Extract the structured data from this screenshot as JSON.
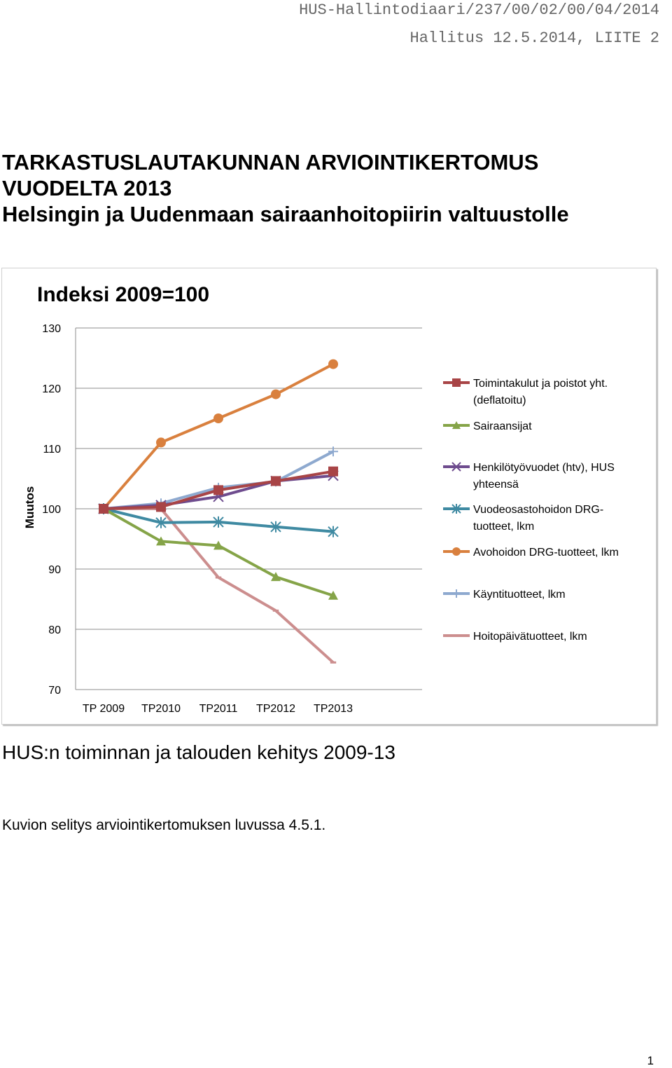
{
  "header": {
    "ref": "HUS-Hallintodiaari/237/00/02/00/04/2014",
    "meeting": "Hallitus 12.5.2014, LIITE 2"
  },
  "document": {
    "title_line1": "TARKASTUSLAUTAKUNNAN ARVIOINTIKERTOMUS",
    "title_line2": "VUODELTA 2013",
    "title_line3": "Helsingin ja Uudenmaan sairaanhoitopiirin valtuustolle",
    "caption": "HUS:n toiminnan ja talouden kehitys 2009-13",
    "note": "Kuvion selitys arviointikertomuksen luvussa 4.5.1.",
    "page_number": "1"
  },
  "chart_data": {
    "type": "line",
    "title": "Indeksi 2009=100",
    "xlabel": "",
    "ylabel": "Muutos",
    "ylim": [
      70,
      130
    ],
    "yticks": [
      70,
      80,
      90,
      100,
      110,
      120,
      130
    ],
    "grid": false,
    "legend_position": "right",
    "categories": [
      "TP 2009",
      "TP2010",
      "TP2011",
      "TP2012",
      "TP2013"
    ],
    "series": [
      {
        "name": "Toimintakulut ja poistot yht. (deflatoitu)",
        "legend_lines": [
          "Toimintakulut ja poistot yht.",
          "(deflatoitu)"
        ],
        "color": "#a84446",
        "marker": "square",
        "values": [
          100.0,
          100.3,
          103.1,
          104.6,
          106.2
        ]
      },
      {
        "name": "Sairaansijat",
        "legend_lines": [
          "Sairaansijat"
        ],
        "color": "#85a448",
        "marker": "triangle",
        "values": [
          100.0,
          94.6,
          93.9,
          88.7,
          85.6
        ]
      },
      {
        "name": "Henkilötyövuodet (htv), HUS yhteensä",
        "legend_lines": [
          "Henkilötyövuodet (htv), HUS",
          "yhteensä"
        ],
        "color": "#6e4c8e",
        "marker": "x",
        "values": [
          100.0,
          100.6,
          102.0,
          104.6,
          105.5
        ]
      },
      {
        "name": "Vuodeosastohoidon DRG-tuotteet, lkm",
        "legend_lines": [
          "Vuodeosastohoidon DRG-",
          "tuotteet, lkm"
        ],
        "color": "#3f8aa2",
        "marker": "star",
        "values": [
          100.0,
          97.7,
          97.8,
          97.0,
          96.2
        ]
      },
      {
        "name": "Avohoidon DRG-tuotteet, lkm",
        "legend_lines": [
          "Avohoidon DRG-tuotteet, lkm"
        ],
        "color": "#d9803e",
        "marker": "circle",
        "values": [
          100.0,
          111.0,
          115.0,
          119.0,
          124.0
        ]
      },
      {
        "name": "Käyntituotteet, lkm",
        "legend_lines": [
          "Käyntituotteet, lkm"
        ],
        "color": "#8ea9cf",
        "marker": "plus",
        "values": [
          100.0,
          100.9,
          103.5,
          104.5,
          109.5
        ]
      },
      {
        "name": "Hoitopäivätuotteet, lkm",
        "legend_lines": [
          "Hoitopäivätuotteet, lkm"
        ],
        "color": "#cc8e8e",
        "marker": "dash",
        "values": [
          100.0,
          100.0,
          88.6,
          83.1,
          74.5
        ]
      }
    ]
  }
}
